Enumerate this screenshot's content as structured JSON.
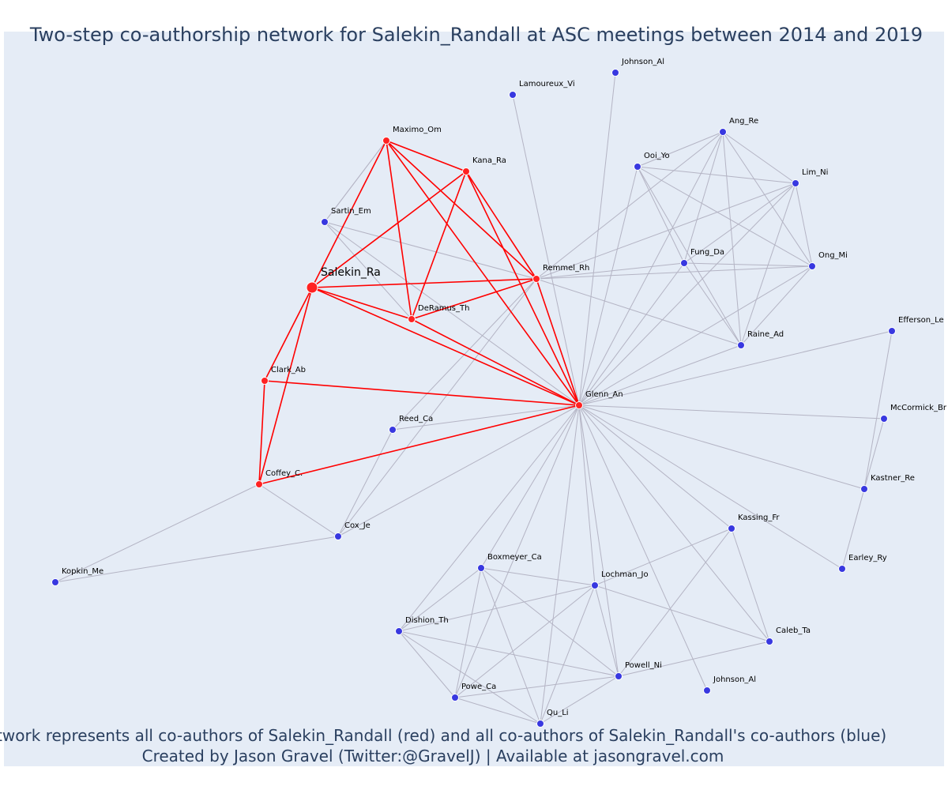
{
  "title": "Two-step co-authorship network for Salekin_Randall at ASC meetings between 2014 and 2019",
  "footer": {
    "line1": "Network represents all co-authors of Salekin_Randall (red) and all co-authors of Salekin_Randall's co-authors (blue)",
    "line2": "Created by Jason Gravel (Twitter:@GravelJ) | Available at jasongravel.com"
  },
  "colors": {
    "background": "#e5ecf6",
    "red_node": "#ff2222",
    "blue_node": "#3838e0",
    "red_edge": "#ff0000",
    "gray_edge": "#b4b4c4",
    "text": "#2a3f5f"
  },
  "chart_data": {
    "type": "network",
    "center": "Salekin_Ra",
    "nodes": [
      {
        "id": "salekin",
        "label": "Salekin_Ra",
        "group": "center"
      },
      {
        "id": "maximo",
        "label": "Maximo_Om",
        "group": "red"
      },
      {
        "id": "kana",
        "label": "Kana_Ra",
        "group": "red"
      },
      {
        "id": "deramus",
        "label": "DeRamus_Th",
        "group": "red"
      },
      {
        "id": "remmel",
        "label": "Remmel_Rh",
        "group": "red"
      },
      {
        "id": "clark",
        "label": "Clark_Ab",
        "group": "red"
      },
      {
        "id": "coffey",
        "label": "Coffey_C.",
        "group": "red"
      },
      {
        "id": "glenn",
        "label": "Glenn_An",
        "group": "red"
      },
      {
        "id": "sartin",
        "label": "Sartin_Em",
        "group": "blue"
      },
      {
        "id": "lamoureux",
        "label": "Lamoureux_Vi",
        "group": "blue"
      },
      {
        "id": "johnson1",
        "label": "Johnson_Al",
        "group": "blue"
      },
      {
        "id": "ang",
        "label": "Ang_Re",
        "group": "blue"
      },
      {
        "id": "ooi",
        "label": "Ooi_Yo",
        "group": "blue"
      },
      {
        "id": "lim",
        "label": "Lim_Ni",
        "group": "blue"
      },
      {
        "id": "fung",
        "label": "Fung_Da",
        "group": "blue"
      },
      {
        "id": "ong",
        "label": "Ong_Mi",
        "group": "blue"
      },
      {
        "id": "raine",
        "label": "Raine_Ad",
        "group": "blue"
      },
      {
        "id": "efferson",
        "label": "Efferson_Le",
        "group": "blue"
      },
      {
        "id": "mccormick",
        "label": "McCormick_Br",
        "group": "blue"
      },
      {
        "id": "kastner",
        "label": "Kastner_Re",
        "group": "blue"
      },
      {
        "id": "earley",
        "label": "Earley_Ry",
        "group": "blue"
      },
      {
        "id": "kassing",
        "label": "Kassing_Fr",
        "group": "blue"
      },
      {
        "id": "reed",
        "label": "Reed_Ca",
        "group": "blue"
      },
      {
        "id": "cox",
        "label": "Cox_Je",
        "group": "blue"
      },
      {
        "id": "kopkin",
        "label": "Kopkin_Me",
        "group": "blue"
      },
      {
        "id": "boxmeyer",
        "label": "Boxmeyer_Ca",
        "group": "blue"
      },
      {
        "id": "lochman",
        "label": "Lochman_Jo",
        "group": "blue"
      },
      {
        "id": "dishion",
        "label": "Dishion_Th",
        "group": "blue"
      },
      {
        "id": "caleb",
        "label": "Caleb_Ta",
        "group": "blue"
      },
      {
        "id": "powell",
        "label": "Powell_Ni",
        "group": "blue"
      },
      {
        "id": "johnson2",
        "label": "Johnson_Al",
        "group": "blue"
      },
      {
        "id": "powe",
        "label": "Powe_Ca",
        "group": "blue"
      },
      {
        "id": "qu",
        "label": "Qu_Li",
        "group": "blue"
      }
    ],
    "edges_red": [
      [
        "salekin",
        "maximo"
      ],
      [
        "salekin",
        "kana"
      ],
      [
        "salekin",
        "deramus"
      ],
      [
        "salekin",
        "remmel"
      ],
      [
        "salekin",
        "clark"
      ],
      [
        "salekin",
        "coffey"
      ],
      [
        "salekin",
        "glenn"
      ],
      [
        "maximo",
        "kana"
      ],
      [
        "maximo",
        "deramus"
      ],
      [
        "maximo",
        "remmel"
      ],
      [
        "maximo",
        "glenn"
      ],
      [
        "kana",
        "deramus"
      ],
      [
        "kana",
        "remmel"
      ],
      [
        "kana",
        "glenn"
      ],
      [
        "deramus",
        "remmel"
      ],
      [
        "deramus",
        "glenn"
      ],
      [
        "remmel",
        "glenn"
      ],
      [
        "clark",
        "coffey"
      ],
      [
        "clark",
        "glenn"
      ],
      [
        "coffey",
        "glenn"
      ]
    ],
    "edges_gray": [
      [
        "sartin",
        "maximo"
      ],
      [
        "sartin",
        "deramus"
      ],
      [
        "sartin",
        "remmel"
      ],
      [
        "sartin",
        "glenn"
      ],
      [
        "maximo",
        "sartin"
      ],
      [
        "lamoureux",
        "glenn"
      ],
      [
        "johnson1",
        "glenn"
      ],
      [
        "ang",
        "ooi"
      ],
      [
        "ang",
        "lim"
      ],
      [
        "ang",
        "fung"
      ],
      [
        "ang",
        "ong"
      ],
      [
        "ang",
        "raine"
      ],
      [
        "ang",
        "glenn"
      ],
      [
        "ang",
        "remmel"
      ],
      [
        "ooi",
        "lim"
      ],
      [
        "ooi",
        "fung"
      ],
      [
        "ooi",
        "ong"
      ],
      [
        "ooi",
        "raine"
      ],
      [
        "ooi",
        "glenn"
      ],
      [
        "lim",
        "fung"
      ],
      [
        "lim",
        "ong"
      ],
      [
        "lim",
        "raine"
      ],
      [
        "lim",
        "glenn"
      ],
      [
        "lim",
        "remmel"
      ],
      [
        "fung",
        "ong"
      ],
      [
        "fung",
        "raine"
      ],
      [
        "fung",
        "glenn"
      ],
      [
        "fung",
        "remmel"
      ],
      [
        "ong",
        "remmel"
      ],
      [
        "ong",
        "glenn"
      ],
      [
        "ong",
        "raine"
      ],
      [
        "raine",
        "glenn"
      ],
      [
        "raine",
        "remmel"
      ],
      [
        "efferson",
        "glenn"
      ],
      [
        "efferson",
        "kastner"
      ],
      [
        "mccormick",
        "glenn"
      ],
      [
        "mccormick",
        "kastner"
      ],
      [
        "kastner",
        "glenn"
      ],
      [
        "kastner",
        "earley"
      ],
      [
        "earley",
        "glenn"
      ],
      [
        "kassing",
        "glenn"
      ],
      [
        "kassing",
        "lochman"
      ],
      [
        "kassing",
        "caleb"
      ],
      [
        "kassing",
        "powell"
      ],
      [
        "reed",
        "glenn"
      ],
      [
        "reed",
        "cox"
      ],
      [
        "reed",
        "remmel"
      ],
      [
        "cox",
        "coffey"
      ],
      [
        "cox",
        "kopkin"
      ],
      [
        "cox",
        "remmel"
      ],
      [
        "cox",
        "glenn"
      ],
      [
        "kopkin",
        "coffey"
      ],
      [
        "boxmeyer",
        "glenn"
      ],
      [
        "boxmeyer",
        "lochman"
      ],
      [
        "boxmeyer",
        "dishion"
      ],
      [
        "boxmeyer",
        "powe"
      ],
      [
        "boxmeyer",
        "qu"
      ],
      [
        "boxmeyer",
        "powell"
      ],
      [
        "lochman",
        "glenn"
      ],
      [
        "lochman",
        "dishion"
      ],
      [
        "lochman",
        "caleb"
      ],
      [
        "lochman",
        "powell"
      ],
      [
        "lochman",
        "powe"
      ],
      [
        "lochman",
        "qu"
      ],
      [
        "dishion",
        "glenn"
      ],
      [
        "dishion",
        "powe"
      ],
      [
        "dishion",
        "qu"
      ],
      [
        "dishion",
        "powell"
      ],
      [
        "caleb",
        "glenn"
      ],
      [
        "caleb",
        "powell"
      ],
      [
        "powell",
        "glenn"
      ],
      [
        "powell",
        "powe"
      ],
      [
        "powell",
        "qu"
      ],
      [
        "johnson2",
        "glenn"
      ],
      [
        "powe",
        "glenn"
      ],
      [
        "powe",
        "qu"
      ],
      [
        "qu",
        "glenn"
      ]
    ]
  }
}
